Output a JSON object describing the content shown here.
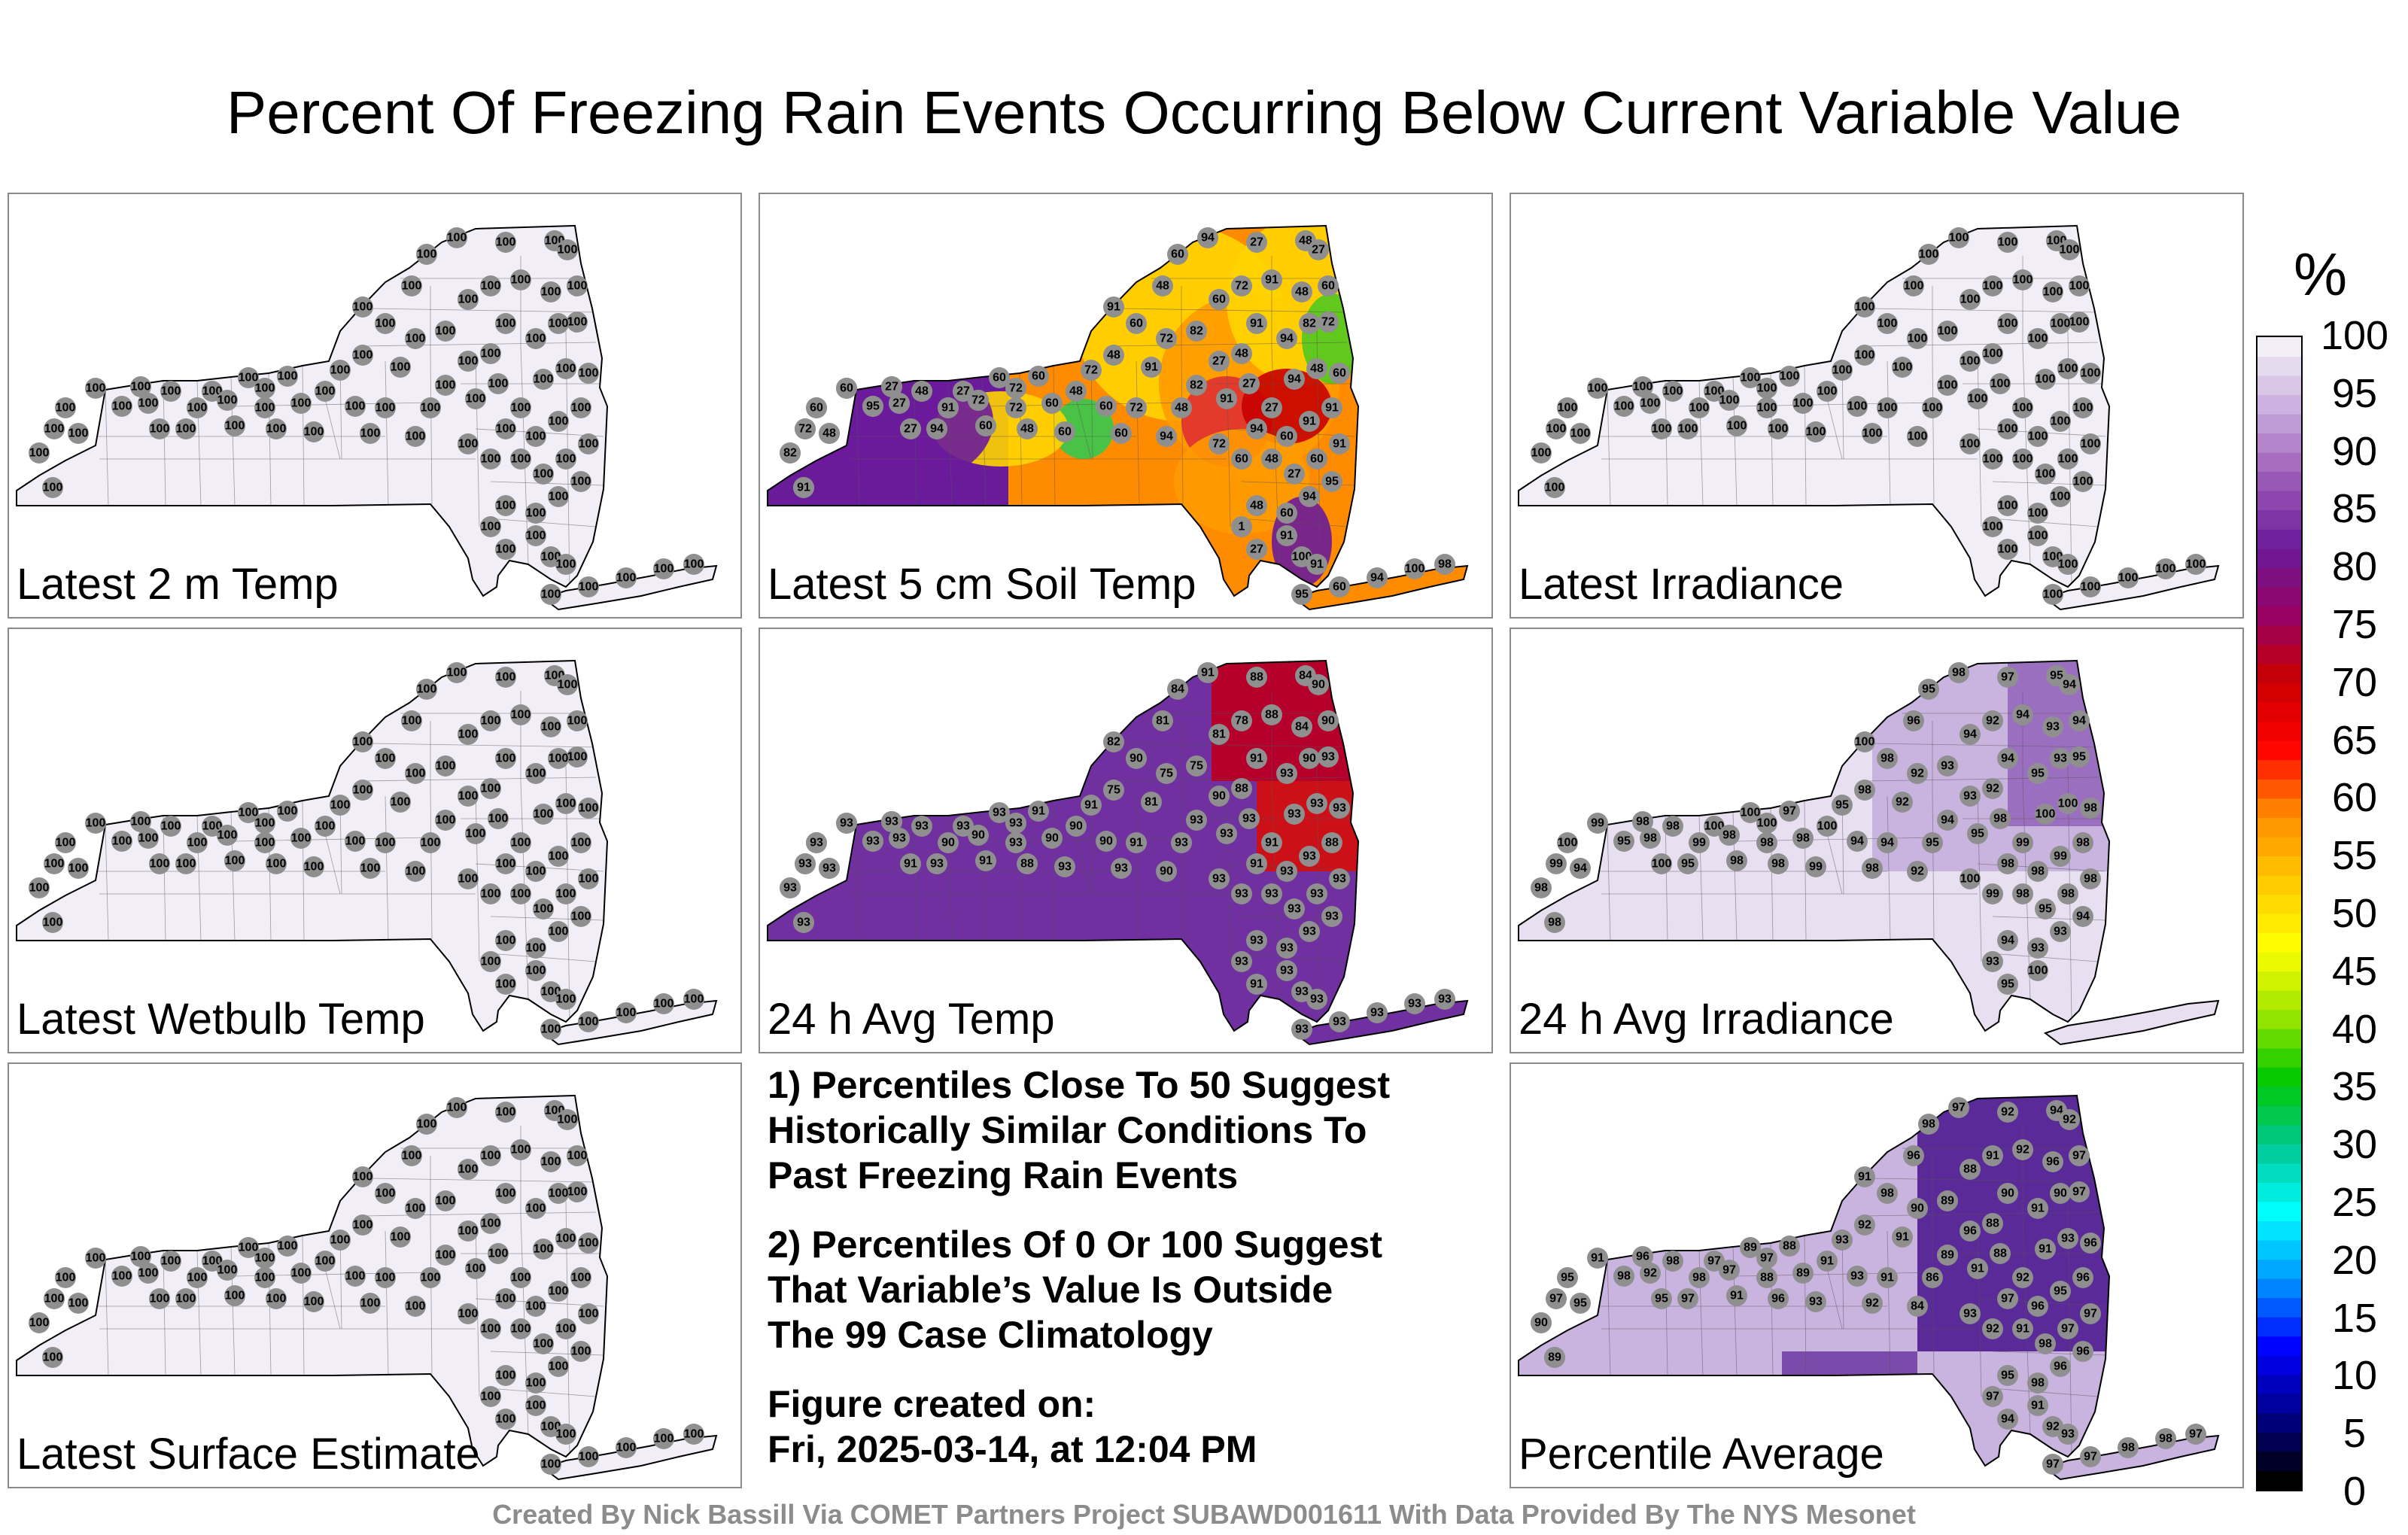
{
  "title": "Percent Of Freezing Rain Events Occurring Below Current Variable Value",
  "panels": [
    {
      "label": "Latest 2 m Temp",
      "scheme": "uniform100",
      "station_values": [
        "100",
        "100",
        "100",
        "100",
        "100",
        "100",
        "100",
        "100",
        "100",
        "100",
        "100",
        "100",
        "100",
        "100",
        "100",
        "100",
        "100",
        "100",
        "100",
        "100",
        "100",
        "100",
        "100",
        "100",
        "100",
        "100",
        "100",
        "100",
        "100",
        "100",
        "100",
        "100",
        "100",
        "100",
        "100",
        "100",
        "100",
        "100",
        "100",
        "100",
        "100",
        "100",
        "100",
        "100",
        "100",
        "100",
        "100",
        "100",
        "100",
        "100",
        "100",
        "100",
        "100",
        "100",
        "100",
        "100",
        "100",
        "100",
        "100",
        "100",
        "100",
        "100",
        "100",
        "100",
        "100",
        "100",
        "100",
        "100",
        "100",
        "100",
        "100",
        "100",
        "100",
        "100",
        "100",
        "100",
        "100",
        "100",
        "100",
        "100",
        "100",
        "100",
        "100",
        "100"
      ]
    },
    {
      "label": "Latest 5 cm Soil Temp",
      "scheme": "soil",
      "station_values": [
        "91",
        "94",
        "91",
        "91",
        "95",
        "72",
        "82",
        "91",
        "94",
        "91",
        "95",
        "91",
        "60",
        "48",
        "72",
        "48",
        "60",
        "72",
        "48",
        "72",
        "60",
        "60",
        "60",
        "48",
        "72",
        "48",
        "91",
        "60",
        "48",
        "60",
        "94",
        "27",
        "48",
        "27",
        "91",
        "72",
        "82",
        "60",
        "72",
        "91",
        "48",
        "60",
        "72",
        "82",
        "94",
        "91",
        "48",
        "27",
        "82",
        "48",
        "94",
        "72",
        "60",
        "60",
        "91",
        "27",
        "27",
        "94",
        "48",
        "60",
        "91",
        "91",
        "60",
        "94",
        "60",
        "72",
        "48",
        "27",
        "60",
        "91",
        "95",
        "94",
        "60",
        "48",
        "1",
        "27",
        "91",
        "100",
        "91",
        "95",
        "60",
        "94",
        "100",
        "98",
        "91",
        "82",
        "72",
        "48",
        "60",
        "60",
        "95",
        "27",
        "27",
        "27",
        "48",
        "94",
        "91",
        "27",
        "60",
        "72"
      ]
    },
    {
      "label": "Latest Irradiance",
      "scheme": "uniform100",
      "station_values": [
        "100",
        "100",
        "100",
        "100",
        "100",
        "100",
        "100",
        "100",
        "100",
        "100",
        "100",
        "100",
        "100",
        "100",
        "100",
        "100",
        "100",
        "100",
        "100",
        "100",
        "100",
        "100",
        "100",
        "100",
        "100",
        "100",
        "100",
        "100",
        "100",
        "100",
        "100",
        "100",
        "100",
        "100",
        "100",
        "100",
        "100",
        "100",
        "100",
        "100",
        "100",
        "100",
        "100",
        "100",
        "100",
        "100",
        "100",
        "100",
        "100",
        "100",
        "100",
        "100",
        "100",
        "100",
        "100",
        "100",
        "100",
        "100",
        "100",
        "100",
        "100",
        "100",
        "100",
        "100",
        "100",
        "100",
        "100",
        "100",
        "100",
        "100",
        "100",
        "100",
        "100",
        "100",
        "100",
        "100",
        "100",
        "100",
        "100",
        "100",
        "100",
        "100",
        "100",
        "100"
      ]
    },
    {
      "label": "Latest Wetbulb Temp",
      "scheme": "uniform100",
      "station_values": [
        "100",
        "100",
        "100",
        "100",
        "100",
        "100",
        "100",
        "100",
        "100",
        "100",
        "100",
        "100",
        "100",
        "100",
        "100",
        "100",
        "100",
        "100",
        "100",
        "100",
        "100",
        "100",
        "100",
        "100",
        "100",
        "100",
        "100",
        "100",
        "100",
        "100",
        "100",
        "100",
        "100",
        "100",
        "100",
        "100",
        "100",
        "100",
        "100",
        "100",
        "100",
        "100",
        "100",
        "100",
        "100",
        "100",
        "100",
        "100",
        "100",
        "100",
        "100",
        "100",
        "100",
        "100",
        "100",
        "100",
        "100",
        "100",
        "100",
        "100",
        "100",
        "100",
        "100",
        "100",
        "100",
        "100",
        "100",
        "100",
        "100",
        "100",
        "100",
        "100",
        "100",
        "100",
        "100",
        "100",
        "100",
        "100",
        "100",
        "100",
        "100",
        "100",
        "100",
        "100"
      ]
    },
    {
      "label": "24 h Avg Temp",
      "scheme": "avgtemp",
      "station_values": [
        "93",
        "90",
        "88",
        "84",
        "90",
        "84",
        "90",
        "93",
        "91",
        "93",
        "93",
        "93",
        "90",
        "93",
        "91",
        "90",
        "93",
        "93",
        "88",
        "93",
        "91",
        "90",
        "93",
        "90",
        "91",
        "75",
        "82",
        "90",
        "81",
        "84",
        "91",
        "88",
        "84",
        "90",
        "81",
        "75",
        "75",
        "81",
        "78",
        "88",
        "84",
        "90",
        "93",
        "90",
        "93",
        "91",
        "88",
        "90",
        "93",
        "93",
        "90",
        "91",
        "93",
        "90",
        "93",
        "93",
        "91",
        "93",
        "93",
        "93",
        "88",
        "93",
        "93",
        "91",
        "93",
        "93",
        "93",
        "93",
        "93",
        "93",
        "93",
        "93",
        "93",
        "93",
        "93",
        "91",
        "93",
        "93",
        "93",
        "93",
        "93",
        "93",
        "93",
        "93",
        "93",
        "93",
        "93",
        "93",
        "93",
        "93",
        "93",
        "93"
      ]
    },
    {
      "label": "24 h Avg Irradiance",
      "scheme": "avgirr",
      "station_values": [
        "98",
        "98",
        "99",
        "94",
        "100",
        "99",
        "95",
        "98",
        "100",
        "98",
        "98",
        "95",
        "99",
        "100",
        "98",
        "98",
        "100",
        "98",
        "98",
        "100",
        "97",
        "98",
        "99",
        "100",
        "95",
        "98",
        "100",
        "98",
        "96",
        "95",
        "98",
        "97",
        "95",
        "94",
        "92",
        "92",
        "93",
        "94",
        "92",
        "94",
        "93",
        "94",
        "95",
        "93",
        "95",
        "94",
        "92",
        "93",
        "94",
        "95",
        "92",
        "94",
        "98",
        "94",
        "95",
        "98",
        "99",
        "100",
        "100",
        "98",
        "98",
        "99",
        "98",
        "98",
        "99",
        "100",
        "98",
        "95",
        "98",
        "98",
        "94",
        "93",
        "93",
        "94",
        "93",
        "95",
        "100"
      ]
    },
    {
      "label": "Latest Surface Estimate",
      "scheme": "uniform100",
      "station_values": [
        "100",
        "100",
        "100",
        "100",
        "100",
        "100",
        "100",
        "100",
        "100",
        "100",
        "100",
        "100",
        "100",
        "100",
        "100",
        "100",
        "100",
        "100",
        "100",
        "100",
        "100",
        "100",
        "100",
        "100",
        "100",
        "100",
        "100",
        "100",
        "100",
        "100",
        "100",
        "100",
        "100",
        "100",
        "100",
        "100",
        "100",
        "100",
        "100",
        "100",
        "100",
        "100",
        "100",
        "100",
        "100",
        "100",
        "100",
        "100",
        "100",
        "100",
        "100",
        "100",
        "100",
        "100",
        "100",
        "100",
        "100",
        "100",
        "100",
        "100",
        "100",
        "100",
        "100",
        "100",
        "100",
        "100",
        "100",
        "100",
        "100",
        "100",
        "100",
        "100",
        "100",
        "100",
        "100",
        "100",
        "100",
        "100",
        "100",
        "100",
        "100",
        "100",
        "100",
        "100"
      ]
    },
    {
      "label": "Percentile Average",
      "scheme": "average",
      "station_values": [
        "98",
        "96",
        "97",
        "95",
        "95",
        "91",
        "98",
        "96",
        "95",
        "92",
        "98",
        "97",
        "98",
        "97",
        "91",
        "97",
        "89",
        "88",
        "96",
        "97",
        "88",
        "89",
        "93",
        "91",
        "93",
        "92",
        "91",
        "98",
        "96",
        "98",
        "97",
        "92",
        "94",
        "92",
        "91",
        "90",
        "89",
        "88",
        "91",
        "92",
        "96",
        "97",
        "97",
        "90",
        "91",
        "90",
        "88",
        "96",
        "89",
        "86",
        "84",
        "91",
        "92",
        "93",
        "91",
        "88",
        "92",
        "91",
        "93",
        "96",
        "96",
        "95",
        "96",
        "97",
        "92",
        "93",
        "91",
        "98",
        "97",
        "97",
        "96",
        "96",
        "98",
        "95",
        "97",
        "94",
        "91",
        "92",
        "93",
        "97",
        "97",
        "98",
        "98",
        "97",
        "89",
        "90"
      ]
    }
  ],
  "notes": [
    "1) Percentiles Close To 50 Suggest\nHistorically Similar Conditions To\nPast Freezing Rain Events",
    "2) Percentiles Of 0 Or 100 Suggest\nThat Variable’s Value Is Outside\nThe 99 Case Climatology",
    "Figure created on:\nFri, 2025-03-14, at 12:04 PM"
  ],
  "colorbar": {
    "unit": "%",
    "ticks": [
      "100",
      "95",
      "90",
      "85",
      "80",
      "75",
      "70",
      "65",
      "60",
      "55",
      "50",
      "45",
      "40",
      "35",
      "30",
      "25",
      "20",
      "15",
      "10",
      "5",
      "0"
    ],
    "stops": [
      "#000000",
      "#00008c",
      "#0000ff",
      "#0096ff",
      "#00ffff",
      "#00c896",
      "#00c800",
      "#a0e600",
      "#ffff00",
      "#ffc800",
      "#ff8c00",
      "#ff0000",
      "#c80000",
      "#960064",
      "#6a1b9a",
      "#9b59b6",
      "#c7a8dc",
      "#f2eef7"
    ]
  },
  "footer": "Created By Nick Bassill Via COMET Partners Project SUBAWD001611 With Data Provided By The NYS Mesonet"
}
